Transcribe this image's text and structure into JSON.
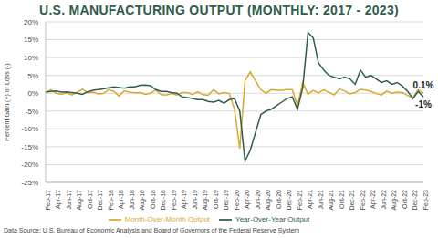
{
  "chart_data": {
    "type": "line",
    "title": "U.S. MANUFACTURING OUTPUT (MONTHLY: 2017 - 2023)",
    "y_label": "Percent Gain (+) or Loss (-)",
    "source": "Data Source: U.S. Bureau of Economic Analysis and Board of Governors of the Federal Reserve System",
    "categories": [
      "Feb-17",
      null,
      "Apr-17",
      null,
      "Jun-17",
      null,
      "Aug-17",
      null,
      "Oct-17",
      null,
      "Dec-17",
      null,
      "Feb-18",
      null,
      "Apr-18",
      null,
      "Jun-18",
      null,
      "Aug-18",
      null,
      "Oct-18",
      null,
      "Dec-18",
      null,
      "Feb-19",
      null,
      "Apr-19",
      null,
      "Jun-19",
      null,
      "Aug-19",
      null,
      "Oct-19",
      null,
      "Dec-19",
      null,
      "Feb-20",
      null,
      "Apr-20",
      null,
      "Jun-20",
      null,
      "Aug-20",
      null,
      "Oct-20",
      null,
      "Dec-20",
      null,
      "Feb-21",
      null,
      "Apr-21",
      null,
      "Jun-21",
      null,
      "Aug-21",
      null,
      "Oct-21",
      null,
      "Dec-21",
      null,
      "Feb-22",
      null,
      "Apr-22",
      null,
      "Jun-22",
      null,
      "Aug-22",
      null,
      "Oct-22",
      null,
      "Dec-22",
      null,
      "Feb-23"
    ],
    "series": [
      {
        "name": "Month-Over-Month Output",
        "color": "#d9a82e",
        "values": [
          0.2,
          1.0,
          0.0,
          -0.3,
          0.1,
          -0.5,
          0.3,
          1.1,
          0.2,
          0.3,
          -0.2,
          -0.1,
          1.0,
          0.5,
          -0.8,
          0.7,
          0.3,
          0.1,
          0.2,
          -0.3,
          0.0,
          0.9,
          -0.4,
          -0.5,
          -0.1,
          -0.5,
          0.2,
          0.2,
          -0.4,
          0.4,
          -0.4,
          -0.6,
          1.0,
          -0.2,
          0.2,
          -0.1,
          -4.5,
          -15.5,
          3.5,
          6.0,
          3.5,
          1.0,
          0.0,
          1.0,
          0.8,
          0.8,
          1.0,
          1.0,
          -3.5,
          3.0,
          -0.3,
          0.8,
          0.1,
          1.0,
          0.2,
          -0.5,
          1.2,
          0.6,
          -0.2,
          0.2,
          1.1,
          0.9,
          0.5,
          -0.1,
          -0.5,
          0.6,
          0.0,
          0.3,
          0.2,
          -0.6,
          -1.3,
          1.0,
          0.1
        ]
      },
      {
        "name": "Year-Over-Year Output",
        "color": "#2f5d4c",
        "values": [
          0.3,
          0.5,
          0.6,
          0.3,
          0.4,
          0.2,
          0.0,
          -0.3,
          0.4,
          0.8,
          1.0,
          1.2,
          1.5,
          1.8,
          1.6,
          1.4,
          1.8,
          1.8,
          2.2,
          2.3,
          2.1,
          1.0,
          0.5,
          0.5,
          0.2,
          0.0,
          -1.0,
          -1.2,
          -1.5,
          -1.8,
          -1.8,
          -2.3,
          -2.5,
          -2.0,
          -2.8,
          -1.8,
          -1.5,
          -5.0,
          -19.0,
          -16.0,
          -11.0,
          -6.0,
          -5.0,
          -4.5,
          -3.5,
          -2.5,
          -1.5,
          -1.0,
          -4.5,
          1.5,
          17.0,
          15.5,
          8.5,
          6.5,
          5.0,
          4.5,
          4.0,
          4.5,
          4.0,
          2.5,
          6.5,
          4.5,
          5.0,
          4.0,
          3.0,
          3.5,
          2.5,
          3.0,
          2.0,
          0.5,
          -1.5,
          0.5,
          -1.0
        ]
      }
    ],
    "annotations": [
      {
        "label": "0.1%",
        "value": 0.1,
        "series": "Month-Over-Month Output"
      },
      {
        "label": "-1%",
        "value": -1,
        "series": "Year-Over-Year Output"
      }
    ],
    "ylim": [
      -25,
      20
    ],
    "yticks": [
      {
        "value": -25,
        "label": "-25%"
      },
      {
        "value": -20,
        "label": "-20%"
      },
      {
        "value": -15,
        "label": "-15%"
      },
      {
        "value": -10,
        "label": "-10%"
      },
      {
        "value": -5,
        "label": "-5%"
      },
      {
        "value": 0,
        "label": "0%"
      },
      {
        "value": 5,
        "label": "5%"
      },
      {
        "value": 10,
        "label": "10%"
      },
      {
        "value": 15,
        "label": "15%"
      },
      {
        "value": 20,
        "label": "20%"
      }
    ],
    "grid": true,
    "legend": "bottom"
  }
}
